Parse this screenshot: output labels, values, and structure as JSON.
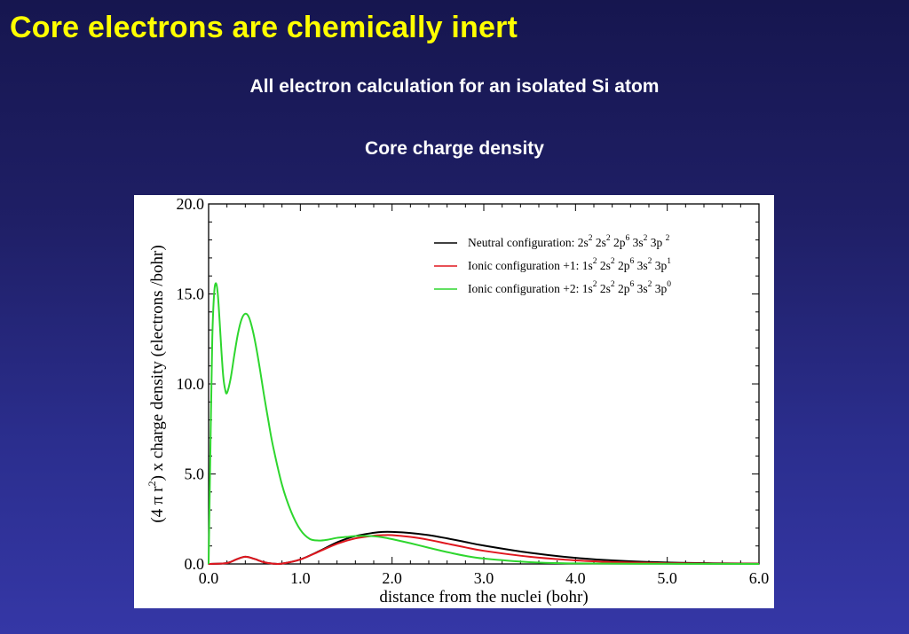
{
  "slide": {
    "title": "Core electrons are chemically inert",
    "subtitle": "All electron calculation for an isolated Si atom",
    "section_label": "Core charge density"
  },
  "colors": {
    "title": "#ffff00",
    "text": "#ffffff",
    "neutral": "#000000",
    "ionic1": "#e0161e",
    "ionic2": "#2ed62e"
  },
  "chart_data": {
    "type": "line",
    "xlabel": "distance from the nuclei (bohr)",
    "ylabel_parts": [
      "(4 ",
      "π",
      "  r",
      "2",
      ")  x charge density (electrons /bohr)"
    ],
    "xlim": [
      0.0,
      6.0
    ],
    "ylim": [
      0.0,
      20.0
    ],
    "x_ticks": [
      "0.0",
      "1.0",
      "2.0",
      "3.0",
      "4.0",
      "5.0",
      "6.0"
    ],
    "y_ticks": [
      "0.0",
      "5.0",
      "10.0",
      "15.0",
      "20.0"
    ],
    "grid": false,
    "legend_position": "top-right",
    "legend": [
      {
        "key": "neutral",
        "prefix": "Neutral configuration: 2s",
        "parts": [
          [
            "2",
            " 2s"
          ],
          [
            "2",
            " 2p"
          ],
          [
            "6",
            " 3s"
          ],
          [
            "2",
            " 3p "
          ],
          [
            "2",
            ""
          ]
        ]
      },
      {
        "key": "ionic1",
        "prefix": "Ionic configuration +1: 1s",
        "parts": [
          [
            "2",
            " 2s"
          ],
          [
            "2",
            " 2p"
          ],
          [
            "6",
            " 3s"
          ],
          [
            "2",
            " 3p"
          ],
          [
            "1",
            ""
          ]
        ]
      },
      {
        "key": "ionic2",
        "prefix": "Ionic configuration +2: 1s",
        "parts": [
          [
            "2",
            " 2s"
          ],
          [
            "2",
            " 2p"
          ],
          [
            "6",
            " 3s"
          ],
          [
            "2",
            " 3p"
          ],
          [
            "0",
            ""
          ]
        ]
      }
    ],
    "series": [
      {
        "key": "neutral",
        "x": [
          0,
          0.2,
          0.3,
          0.4,
          0.5,
          0.6,
          0.7,
          0.8,
          1.0,
          1.2,
          1.4,
          1.6,
          1.8,
          1.9,
          2.0,
          2.2,
          2.4,
          2.6,
          2.8,
          3.0,
          3.5,
          4.0,
          4.5,
          5.0,
          5.5,
          6.0
        ],
        "y": [
          0,
          0.05,
          0.25,
          0.4,
          0.28,
          0.1,
          0.02,
          0.02,
          0.25,
          0.7,
          1.2,
          1.55,
          1.73,
          1.78,
          1.78,
          1.72,
          1.6,
          1.42,
          1.22,
          1.02,
          0.62,
          0.34,
          0.17,
          0.08,
          0.04,
          0.02
        ]
      },
      {
        "key": "ionic1",
        "x": [
          0,
          0.2,
          0.3,
          0.4,
          0.5,
          0.6,
          0.7,
          0.8,
          1.0,
          1.2,
          1.4,
          1.6,
          1.8,
          1.9,
          2.0,
          2.2,
          2.4,
          2.6,
          2.8,
          3.0,
          3.5,
          4.0,
          4.5,
          5.0,
          5.5,
          6.0
        ],
        "y": [
          0,
          0.05,
          0.25,
          0.4,
          0.28,
          0.1,
          0.02,
          0.02,
          0.25,
          0.68,
          1.12,
          1.42,
          1.57,
          1.6,
          1.6,
          1.5,
          1.34,
          1.13,
          0.92,
          0.73,
          0.4,
          0.2,
          0.09,
          0.04,
          0.02,
          0.01
        ]
      },
      {
        "key": "ionic2",
        "x": [
          0,
          0.02,
          0.04,
          0.06,
          0.08,
          0.1,
          0.12,
          0.14,
          0.16,
          0.18,
          0.2,
          0.24,
          0.28,
          0.32,
          0.36,
          0.4,
          0.44,
          0.48,
          0.52,
          0.56,
          0.6,
          0.65,
          0.7,
          0.8,
          0.9,
          1.0,
          1.1,
          1.2,
          1.3,
          1.4,
          1.5,
          1.6,
          1.7,
          1.8,
          1.9,
          2.0,
          2.2,
          2.4,
          2.6,
          2.8,
          3.0,
          3.5,
          4.0,
          5.0,
          6.0
        ],
        "y": [
          0,
          6.5,
          12.5,
          15.0,
          15.6,
          15.0,
          13.5,
          11.8,
          10.4,
          9.7,
          9.5,
          10.3,
          11.6,
          12.8,
          13.6,
          13.9,
          13.7,
          13.0,
          12.0,
          10.8,
          9.5,
          8.0,
          6.6,
          4.4,
          2.9,
          1.9,
          1.4,
          1.3,
          1.35,
          1.45,
          1.5,
          1.55,
          1.56,
          1.54,
          1.48,
          1.38,
          1.15,
          0.9,
          0.66,
          0.45,
          0.3,
          0.1,
          0.03,
          0.01,
          0
        ]
      }
    ]
  }
}
